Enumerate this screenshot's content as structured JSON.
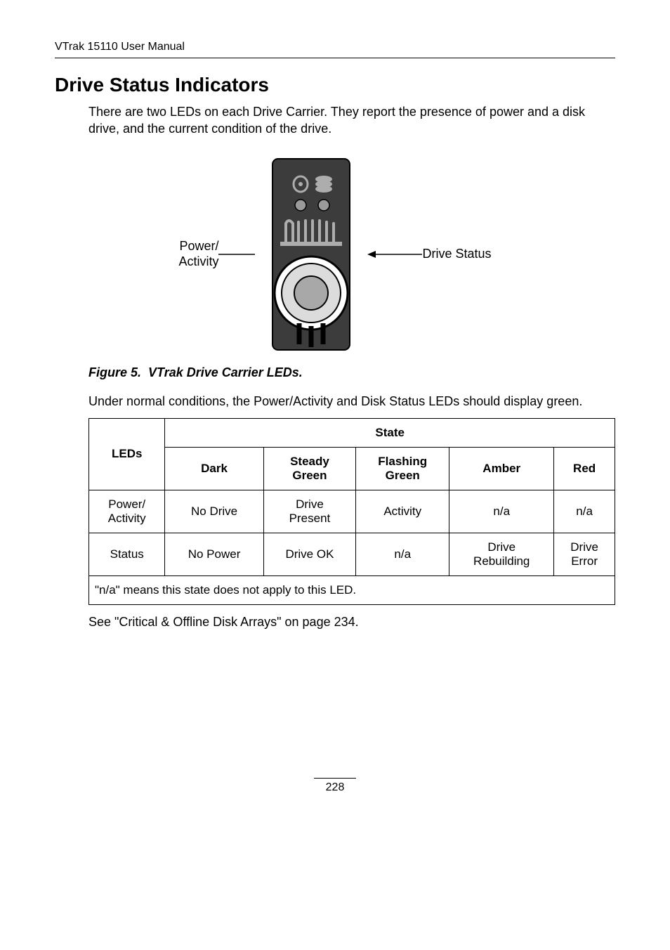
{
  "running_head": "VTrak 15110 User Manual",
  "section_title": "Drive Status Indicators",
  "intro_para": "There are two LEDs on each Drive Carrier. They report the presence of power and a disk drive, and the current condition of the drive.",
  "figure": {
    "left_label_line1": "Power/",
    "left_label_line2": "Activity",
    "right_label": "Drive Status",
    "caption_prefix": "Figure 5.",
    "caption_text": "VTrak Drive Carrier LEDs.",
    "colors": {
      "body_fill": "#3c3c3c",
      "body_stroke": "#000000",
      "port_fill": "#9a9a9a",
      "port_stroke": "#000000",
      "led_fill": "#adadad",
      "vent_stroke": "#000000",
      "knob_outer_stroke": "#000000",
      "knob_outer_fill": "#ffffff",
      "knob_mid_fill": "#dcdcdc",
      "knob_inner_fill": "#a8a8a8",
      "arrow_color": "#000000"
    }
  },
  "after_figure_para": "Under normal conditions, the Power/Activity and Disk Status LEDs should display green.",
  "table": {
    "header_leds": "LEDs",
    "header_state": "State",
    "columns": [
      "Dark",
      "Steady Green",
      "Flashing Green",
      "Amber",
      "Red"
    ],
    "rows": [
      {
        "label": "Power/ Activity",
        "cells": [
          "No Drive",
          "Drive Present",
          "Activity",
          "n/a",
          "n/a"
        ]
      },
      {
        "label": "Status",
        "cells": [
          "No Power",
          "Drive OK",
          "n/a",
          "Drive Rebuilding",
          "Drive Error"
        ]
      }
    ],
    "footnote": "\"n/a\" means this state does not apply to this LED."
  },
  "see_ref": "See \"Critical & Offline Disk Arrays\" on page 234.",
  "page_number": "228"
}
